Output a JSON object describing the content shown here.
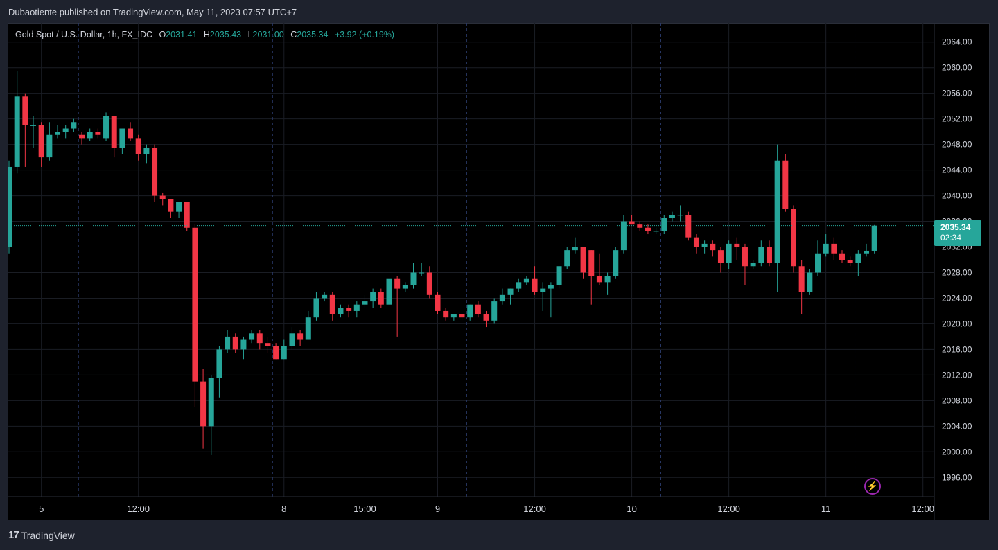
{
  "header": {
    "publisher_line": "Dubaotiente published on TradingView.com, May 11, 2023 07:57 UTC+7"
  },
  "legend": {
    "symbol": "Gold Spot / U.S. Dollar, 1h, FX_IDC",
    "o_label": "O",
    "o_value": "2031.41",
    "h_label": "H",
    "h_value": "2035.43",
    "l_label": "L",
    "l_value": "2031.00",
    "c_label": "C",
    "c_value": "2035.34",
    "change": "+3.92 (+0.19%)"
  },
  "last_price": {
    "price": "2035.34",
    "countdown": "02:34",
    "value": 2035.34
  },
  "footer": {
    "brand": "TradingView",
    "logo_text": "17"
  },
  "icons": {
    "flash": "lightning-icon"
  },
  "colors": {
    "up": "#26a69a",
    "down": "#f23645",
    "background": "#000000",
    "grid": "#1a1d24",
    "text": "#d1d4dc",
    "accent": "#9c27b0"
  },
  "chart_data": {
    "type": "candlestick",
    "interval": "1h",
    "y_axis": {
      "range": [
        1993,
        2067
      ],
      "ticks": [
        "2064.00",
        "2060.00",
        "2056.00",
        "2052.00",
        "2048.00",
        "2044.00",
        "2040.00",
        "2036.00",
        "2032.00",
        "2028.00",
        "2024.00",
        "2020.00",
        "2016.00",
        "2012.00",
        "2008.00",
        "2004.00",
        "2000.00",
        "1996.00"
      ]
    },
    "x_axis": {
      "labels": [
        {
          "text": "5",
          "index": 4
        },
        {
          "text": "12:00",
          "index": 16
        },
        {
          "text": "8",
          "index": 34
        },
        {
          "text": "15:00",
          "index": 44
        },
        {
          "text": "9",
          "index": 53
        },
        {
          "text": "12:00",
          "index": 65
        },
        {
          "text": "10",
          "index": 77
        },
        {
          "text": "12:00",
          "index": 89
        },
        {
          "text": "11",
          "index": 101
        },
        {
          "text": "12:00",
          "index": 113
        }
      ],
      "session_breaks": [
        9,
        33,
        57,
        81,
        105
      ]
    },
    "grid": true,
    "candles": [
      {
        "o": 2032.0,
        "h": 2045.5,
        "l": 2031.0,
        "c": 2044.5
      },
      {
        "o": 2044.5,
        "h": 2059.5,
        "l": 2043.5,
        "c": 2055.5
      },
      {
        "o": 2055.5,
        "h": 2056.0,
        "l": 2044.5,
        "c": 2051.0
      },
      {
        "o": 2051.0,
        "h": 2052.5,
        "l": 2047.5,
        "c": 2051.0
      },
      {
        "o": 2051.0,
        "h": 2051.5,
        "l": 2044.5,
        "c": 2046.0
      },
      {
        "o": 2046.0,
        "h": 2051.5,
        "l": 2045.5,
        "c": 2049.5
      },
      {
        "o": 2049.5,
        "h": 2051.0,
        "l": 2049.0,
        "c": 2050.0
      },
      {
        "o": 2050.0,
        "h": 2051.0,
        "l": 2049.0,
        "c": 2050.5
      },
      {
        "o": 2050.5,
        "h": 2052.0,
        "l": 2050.0,
        "c": 2051.5
      },
      {
        "o": 2049.5,
        "h": 2050.0,
        "l": 2048.0,
        "c": 2049.0
      },
      {
        "o": 2049.0,
        "h": 2050.5,
        "l": 2048.5,
        "c": 2050.0
      },
      {
        "o": 2050.0,
        "h": 2050.5,
        "l": 2049.0,
        "c": 2049.5
      },
      {
        "o": 2049.0,
        "h": 2053.0,
        "l": 2048.5,
        "c": 2052.5
      },
      {
        "o": 2052.5,
        "h": 2052.5,
        "l": 2046.0,
        "c": 2047.5
      },
      {
        "o": 2047.5,
        "h": 2050.5,
        "l": 2046.5,
        "c": 2050.5
      },
      {
        "o": 2050.5,
        "h": 2051.5,
        "l": 2048.5,
        "c": 2049.0
      },
      {
        "o": 2049.0,
        "h": 2049.5,
        "l": 2045.5,
        "c": 2046.5
      },
      {
        "o": 2046.5,
        "h": 2048.0,
        "l": 2045.0,
        "c": 2047.5
      },
      {
        "o": 2047.5,
        "h": 2048.0,
        "l": 2039.0,
        "c": 2040.0
      },
      {
        "o": 2040.0,
        "h": 2040.5,
        "l": 2038.5,
        "c": 2039.5
      },
      {
        "o": 2039.5,
        "h": 2039.5,
        "l": 2036.5,
        "c": 2037.5
      },
      {
        "o": 2037.5,
        "h": 2039.0,
        "l": 2036.5,
        "c": 2039.0
      },
      {
        "o": 2039.0,
        "h": 2039.0,
        "l": 2034.5,
        "c": 2035.0
      },
      {
        "o": 2035.0,
        "h": 2035.5,
        "l": 2007.0,
        "c": 2011.0
      },
      {
        "o": 2011.0,
        "h": 2013.0,
        "l": 2000.5,
        "c": 2004.0
      },
      {
        "o": 2004.0,
        "h": 2012.0,
        "l": 1999.5,
        "c": 2011.5
      },
      {
        "o": 2011.5,
        "h": 2016.5,
        "l": 2008.5,
        "c": 2016.0
      },
      {
        "o": 2016.0,
        "h": 2019.0,
        "l": 2015.5,
        "c": 2018.0
      },
      {
        "o": 2018.0,
        "h": 2018.5,
        "l": 2015.5,
        "c": 2016.0
      },
      {
        "o": 2016.0,
        "h": 2018.0,
        "l": 2014.5,
        "c": 2017.5
      },
      {
        "o": 2017.5,
        "h": 2019.0,
        "l": 2017.0,
        "c": 2018.5
      },
      {
        "o": 2018.5,
        "h": 2019.0,
        "l": 2016.0,
        "c": 2017.0
      },
      {
        "o": 2017.0,
        "h": 2018.0,
        "l": 2015.5,
        "c": 2016.5
      },
      {
        "o": 2016.5,
        "h": 2017.0,
        "l": 2014.5,
        "c": 2014.5
      },
      {
        "o": 2014.5,
        "h": 2017.5,
        "l": 2014.5,
        "c": 2016.5
      },
      {
        "o": 2016.5,
        "h": 2019.5,
        "l": 2016.0,
        "c": 2018.5
      },
      {
        "o": 2018.5,
        "h": 2019.0,
        "l": 2016.5,
        "c": 2017.5
      },
      {
        "o": 2017.5,
        "h": 2022.0,
        "l": 2017.5,
        "c": 2021.0
      },
      {
        "o": 2021.0,
        "h": 2025.0,
        "l": 2020.5,
        "c": 2024.0
      },
      {
        "o": 2024.0,
        "h": 2025.0,
        "l": 2023.5,
        "c": 2024.5
      },
      {
        "o": 2024.5,
        "h": 2025.0,
        "l": 2020.5,
        "c": 2021.5
      },
      {
        "o": 2021.5,
        "h": 2023.0,
        "l": 2021.0,
        "c": 2022.5
      },
      {
        "o": 2022.5,
        "h": 2023.0,
        "l": 2021.0,
        "c": 2022.0
      },
      {
        "o": 2022.0,
        "h": 2023.5,
        "l": 2021.0,
        "c": 2023.0
      },
      {
        "o": 2023.0,
        "h": 2024.5,
        "l": 2022.5,
        "c": 2023.5
      },
      {
        "o": 2023.5,
        "h": 2025.5,
        "l": 2022.5,
        "c": 2025.0
      },
      {
        "o": 2025.0,
        "h": 2025.5,
        "l": 2022.5,
        "c": 2023.0
      },
      {
        "o": 2023.0,
        "h": 2027.5,
        "l": 2022.5,
        "c": 2027.0
      },
      {
        "o": 2027.0,
        "h": 2027.5,
        "l": 2018.0,
        "c": 2025.5
      },
      {
        "o": 2025.5,
        "h": 2026.5,
        "l": 2025.0,
        "c": 2026.0
      },
      {
        "o": 2026.0,
        "h": 2029.5,
        "l": 2025.5,
        "c": 2028.0
      },
      {
        "o": 2028.0,
        "h": 2029.5,
        "l": 2027.5,
        "c": 2028.0
      },
      {
        "o": 2028.0,
        "h": 2029.0,
        "l": 2024.0,
        "c": 2024.5
      },
      {
        "o": 2024.5,
        "h": 2025.0,
        "l": 2021.5,
        "c": 2022.0
      },
      {
        "o": 2022.0,
        "h": 2022.5,
        "l": 2020.5,
        "c": 2021.0
      },
      {
        "o": 2021.0,
        "h": 2021.5,
        "l": 2020.5,
        "c": 2021.5
      },
      {
        "o": 2021.5,
        "h": 2021.5,
        "l": 2020.5,
        "c": 2021.0
      },
      {
        "o": 2021.0,
        "h": 2023.0,
        "l": 2020.5,
        "c": 2023.0
      },
      {
        "o": 2023.0,
        "h": 2023.5,
        "l": 2021.0,
        "c": 2021.5
      },
      {
        "o": 2021.5,
        "h": 2022.0,
        "l": 2019.5,
        "c": 2020.5
      },
      {
        "o": 2020.5,
        "h": 2024.0,
        "l": 2020.0,
        "c": 2023.5
      },
      {
        "o": 2023.5,
        "h": 2025.5,
        "l": 2023.0,
        "c": 2024.5
      },
      {
        "o": 2024.5,
        "h": 2025.5,
        "l": 2023.0,
        "c": 2025.5
      },
      {
        "o": 2025.5,
        "h": 2027.0,
        "l": 2025.0,
        "c": 2026.5
      },
      {
        "o": 2026.5,
        "h": 2027.5,
        "l": 2026.0,
        "c": 2027.0
      },
      {
        "o": 2027.0,
        "h": 2029.0,
        "l": 2024.5,
        "c": 2025.0
      },
      {
        "o": 2025.0,
        "h": 2026.5,
        "l": 2022.0,
        "c": 2025.5
      },
      {
        "o": 2025.5,
        "h": 2026.5,
        "l": 2021.0,
        "c": 2026.0
      },
      {
        "o": 2026.0,
        "h": 2029.0,
        "l": 2025.5,
        "c": 2029.0
      },
      {
        "o": 2029.0,
        "h": 2032.0,
        "l": 2028.5,
        "c": 2031.5
      },
      {
        "o": 2031.5,
        "h": 2033.5,
        "l": 2031.0,
        "c": 2032.0
      },
      {
        "o": 2032.0,
        "h": 2032.0,
        "l": 2027.0,
        "c": 2028.0
      },
      {
        "o": 2031.5,
        "h": 2031.5,
        "l": 2023.0,
        "c": 2027.5
      },
      {
        "o": 2027.5,
        "h": 2031.0,
        "l": 2026.0,
        "c": 2026.5
      },
      {
        "o": 2026.5,
        "h": 2028.0,
        "l": 2024.5,
        "c": 2027.5
      },
      {
        "o": 2027.5,
        "h": 2032.0,
        "l": 2027.0,
        "c": 2031.5
      },
      {
        "o": 2031.5,
        "h": 2037.0,
        "l": 2031.0,
        "c": 2036.0
      },
      {
        "o": 2036.0,
        "h": 2037.0,
        "l": 2035.5,
        "c": 2035.5
      },
      {
        "o": 2035.5,
        "h": 2036.0,
        "l": 2034.5,
        "c": 2035.0
      },
      {
        "o": 2035.0,
        "h": 2035.5,
        "l": 2034.0,
        "c": 2034.5
      },
      {
        "o": 2034.5,
        "h": 2035.0,
        "l": 2034.0,
        "c": 2034.5
      },
      {
        "o": 2034.5,
        "h": 2037.0,
        "l": 2034.0,
        "c": 2036.5
      },
      {
        "o": 2036.5,
        "h": 2037.5,
        "l": 2036.0,
        "c": 2037.0
      },
      {
        "o": 2037.0,
        "h": 2038.5,
        "l": 2036.0,
        "c": 2037.0
      },
      {
        "o": 2037.0,
        "h": 2037.5,
        "l": 2033.0,
        "c": 2033.5
      },
      {
        "o": 2033.5,
        "h": 2034.0,
        "l": 2031.0,
        "c": 2032.0
      },
      {
        "o": 2032.0,
        "h": 2033.0,
        "l": 2031.0,
        "c": 2032.5
      },
      {
        "o": 2032.5,
        "h": 2033.0,
        "l": 2030.5,
        "c": 2031.5
      },
      {
        "o": 2031.5,
        "h": 2032.0,
        "l": 2028.0,
        "c": 2029.5
      },
      {
        "o": 2029.5,
        "h": 2033.0,
        "l": 2028.5,
        "c": 2032.5
      },
      {
        "o": 2032.5,
        "h": 2033.5,
        "l": 2030.0,
        "c": 2032.0
      },
      {
        "o": 2032.0,
        "h": 2032.5,
        "l": 2026.0,
        "c": 2029.0
      },
      {
        "o": 2029.0,
        "h": 2030.0,
        "l": 2028.5,
        "c": 2029.5
      },
      {
        "o": 2029.5,
        "h": 2033.0,
        "l": 2029.0,
        "c": 2032.0
      },
      {
        "o": 2032.0,
        "h": 2033.0,
        "l": 2029.0,
        "c": 2029.5
      },
      {
        "o": 2029.5,
        "h": 2048.0,
        "l": 2025.0,
        "c": 2045.5
      },
      {
        "o": 2045.5,
        "h": 2046.5,
        "l": 2037.5,
        "c": 2038.0
      },
      {
        "o": 2038.0,
        "h": 2038.5,
        "l": 2028.0,
        "c": 2029.0
      },
      {
        "o": 2029.0,
        "h": 2030.0,
        "l": 2021.5,
        "c": 2025.0
      },
      {
        "o": 2025.0,
        "h": 2028.5,
        "l": 2024.5,
        "c": 2028.0
      },
      {
        "o": 2028.0,
        "h": 2033.0,
        "l": 2027.5,
        "c": 2031.0
      },
      {
        "o": 2031.0,
        "h": 2034.0,
        "l": 2030.5,
        "c": 2032.5
      },
      {
        "o": 2032.5,
        "h": 2033.5,
        "l": 2030.0,
        "c": 2031.0
      },
      {
        "o": 2031.0,
        "h": 2031.5,
        "l": 2029.5,
        "c": 2030.0
      },
      {
        "o": 2030.0,
        "h": 2030.5,
        "l": 2029.0,
        "c": 2029.5
      },
      {
        "o": 2029.5,
        "h": 2031.5,
        "l": 2027.5,
        "c": 2031.0
      },
      {
        "o": 2031.0,
        "h": 2032.5,
        "l": 2030.5,
        "c": 2031.41
      },
      {
        "o": 2031.41,
        "h": 2035.43,
        "l": 2031.0,
        "c": 2035.34
      }
    ]
  }
}
